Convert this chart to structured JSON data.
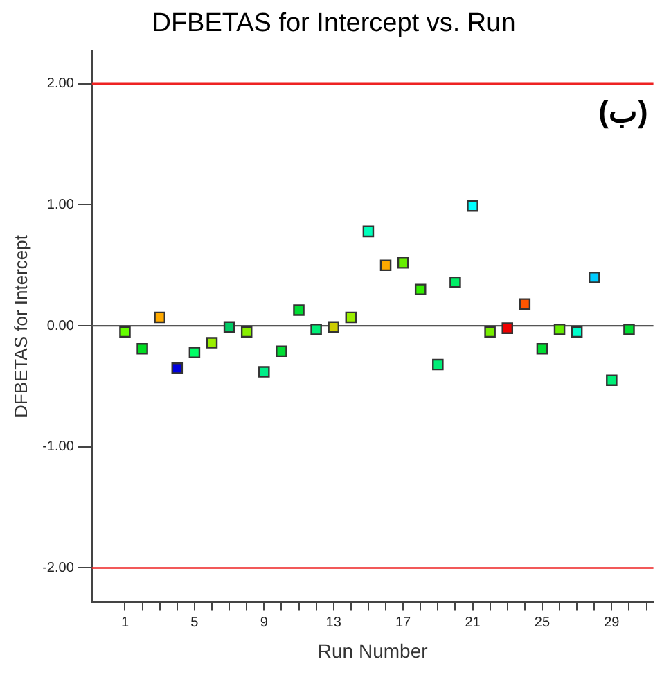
{
  "chart_data": {
    "type": "scatter",
    "title": "DFBETAS for Intercept vs. Run",
    "xlabel": "Run Number",
    "ylabel": "DFBETAS for Intercept",
    "annotations": [
      "(ب)"
    ],
    "marker": "square",
    "grid": false,
    "legend": false,
    "x": [
      1,
      2,
      3,
      4,
      5,
      6,
      7,
      8,
      9,
      10,
      11,
      12,
      13,
      14,
      15,
      16,
      17,
      18,
      19,
      20,
      21,
      22,
      23,
      24,
      25,
      26,
      27,
      28,
      29,
      30
    ],
    "values": [
      -0.05,
      -0.19,
      0.07,
      -0.35,
      -0.22,
      -0.14,
      -0.01,
      -0.05,
      -0.38,
      -0.21,
      0.13,
      -0.03,
      -0.01,
      0.07,
      0.78,
      0.5,
      0.52,
      0.3,
      -0.32,
      0.36,
      0.99,
      -0.05,
      -0.02,
      0.18,
      -0.19,
      -0.03,
      -0.05,
      0.4,
      -0.45,
      -0.03
    ],
    "colors": [
      "#66ff00",
      "#00dd22",
      "#ffaa00",
      "#0000dd",
      "#00ff66",
      "#99ee00",
      "#00cc66",
      "#88ee00",
      "#00ee88",
      "#00dd33",
      "#00dd33",
      "#00ee77",
      "#cccc00",
      "#99ee00",
      "#00ffbb",
      "#ffaa00",
      "#66ee00",
      "#33ee00",
      "#00ee77",
      "#00ee66",
      "#00ffff",
      "#77ee00",
      "#ee0000",
      "#ff5500",
      "#00dd33",
      "#66ee00",
      "#00ffcc",
      "#00ccff",
      "#00ee77",
      "#00dd33"
    ],
    "xlim": [
      -0.9,
      31.4
    ],
    "ylim": [
      -2.28,
      2.27
    ],
    "xticks": [
      1,
      {
        "value": 2,
        "label": null
      },
      {
        "value": 3,
        "label": null
      },
      {
        "value": 4,
        "label": null
      },
      5,
      {
        "value": 6,
        "label": null
      },
      {
        "value": 7,
        "label": null
      },
      {
        "value": 8,
        "label": null
      },
      9,
      {
        "value": 10,
        "label": null
      },
      {
        "value": 11,
        "label": null
      },
      {
        "value": 12,
        "label": null
      },
      13,
      {
        "value": 14,
        "label": null
      },
      {
        "value": 15,
        "label": null
      },
      {
        "value": 16,
        "label": null
      },
      17,
      {
        "value": 18,
        "label": null
      },
      {
        "value": 19,
        "label": null
      },
      {
        "value": 20,
        "label": null
      },
      21,
      {
        "value": 22,
        "label": null
      },
      {
        "value": 23,
        "label": null
      },
      {
        "value": 24,
        "label": null
      },
      25,
      {
        "value": 26,
        "label": null
      },
      {
        "value": 27,
        "label": null
      },
      {
        "value": 28,
        "label": null
      },
      29,
      {
        "value": 30,
        "label": null
      },
      {
        "value": 31,
        "label": null
      }
    ],
    "yticks": [
      {
        "value": -2,
        "label": "-2.00"
      },
      {
        "value": -1,
        "label": "-1.00"
      },
      {
        "value": 0,
        "label": "0.00"
      },
      {
        "value": 1,
        "label": "1.00"
      },
      {
        "value": 2,
        "label": "2.00"
      }
    ],
    "ref_lines": [
      {
        "axis": "y",
        "value": 2,
        "color": "#ee2222"
      },
      {
        "axis": "y",
        "value": 0,
        "color": "#555555"
      },
      {
        "axis": "y",
        "value": -2,
        "color": "#ee2222"
      }
    ]
  }
}
